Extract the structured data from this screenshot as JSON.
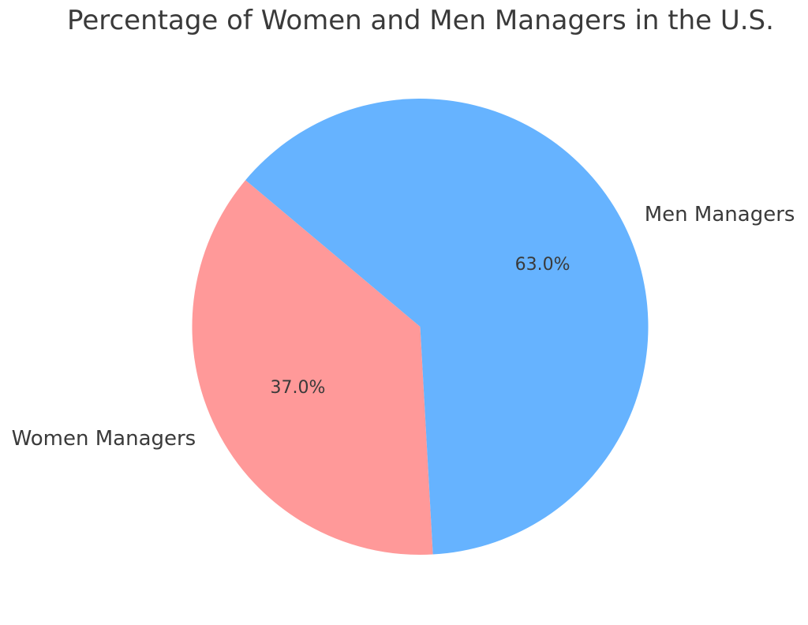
{
  "chart_data": {
    "type": "pie",
    "title": "Percentage of Women and Men Managers in the U.S.",
    "slices": [
      {
        "label": "Women Managers",
        "value": 37.0,
        "pct_label": "37.0%",
        "color": "#ff9999"
      },
      {
        "label": "Men Managers",
        "value": 63.0,
        "pct_label": "63.0%",
        "color": "#66b3ff"
      }
    ],
    "start_angle": 140,
    "direction": "counterclockwise",
    "legend": false,
    "background_color": "#ffffff",
    "text_color": "#3a3a3a"
  }
}
